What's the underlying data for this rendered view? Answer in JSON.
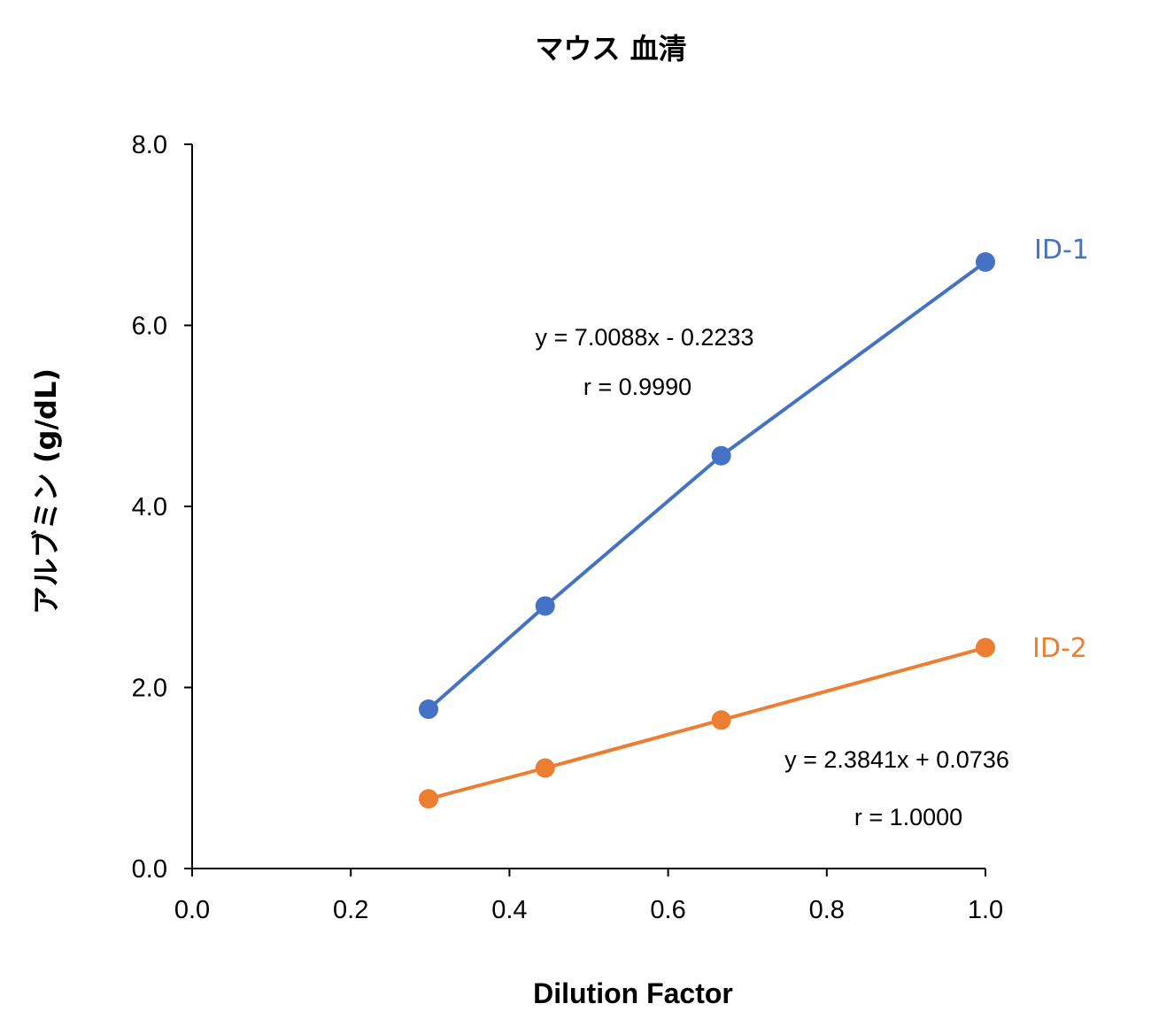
{
  "chart_data": {
    "type": "scatter",
    "title": "マウス 血清",
    "xlabel": "Dilution Factor",
    "ylabel": "アルブミン (g/dL)",
    "xlim": [
      0,
      1.0
    ],
    "ylim": [
      0,
      8.0
    ],
    "xticks": [
      "0.0",
      "0.2",
      "0.4",
      "0.6",
      "0.8",
      "1.0"
    ],
    "yticks": [
      "0.0",
      "2.0",
      "4.0",
      "6.0",
      "8.0"
    ],
    "grid": false,
    "series": [
      {
        "name": "ID-1",
        "color": "#4472C4",
        "x": [
          0.298,
          0.445,
          0.667,
          1.0
        ],
        "y": [
          1.76,
          2.9,
          4.56,
          6.7
        ],
        "equation": "y = 7.0088x - 0.2233",
        "r": "r = 0.9990"
      },
      {
        "name": "ID-2",
        "color": "#ED7D31",
        "x": [
          0.298,
          0.445,
          0.667,
          1.0
        ],
        "y": [
          0.77,
          1.11,
          1.64,
          2.44
        ],
        "equation": "y = 2.3841x + 0.0736",
        "r": "r = 1.0000"
      }
    ]
  }
}
